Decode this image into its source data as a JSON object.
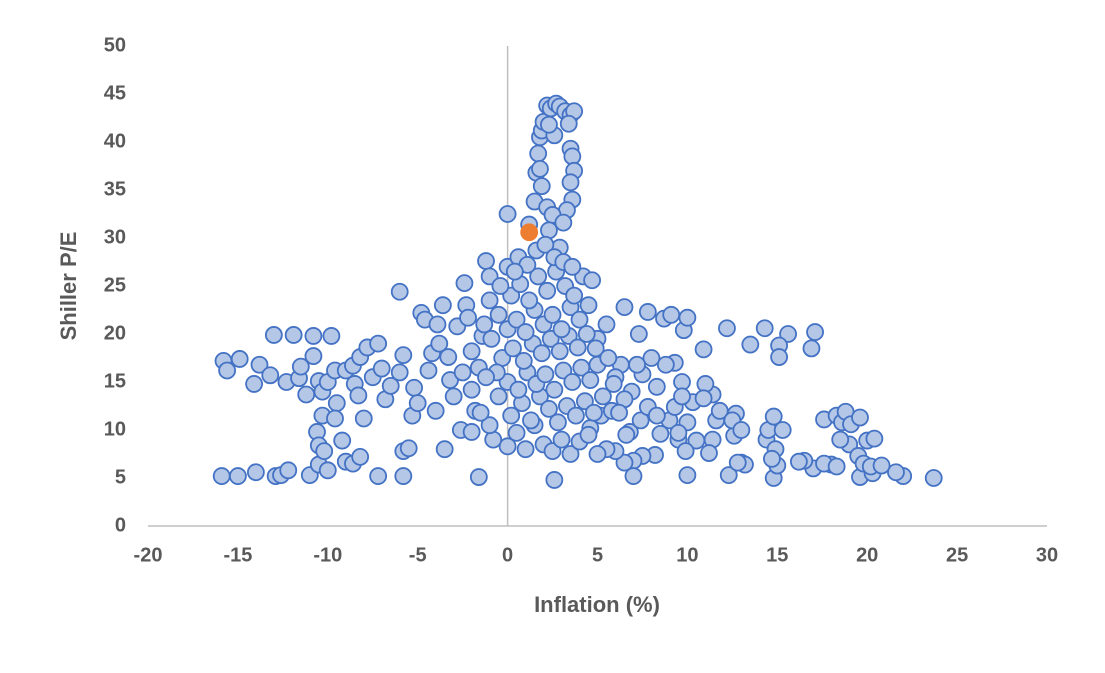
{
  "chart_data": {
    "type": "scatter",
    "x_label": "Inflation (%)",
    "y_label": "Shiller P/E",
    "xlim": [
      -20,
      30
    ],
    "xticks": [
      -20,
      -15,
      -10,
      -5,
      0,
      5,
      10,
      15,
      20,
      25,
      30
    ],
    "ylim": [
      0,
      50
    ],
    "yticks": [
      0,
      5,
      10,
      15,
      20,
      25,
      30,
      35,
      40,
      45,
      50
    ],
    "series": [
      {
        "color": "#b4c7e7",
        "edgecolor": "#4472c4",
        "x": [
          -15.9,
          -15,
          -14,
          -12.9,
          -12.6,
          -12.2,
          -11,
          -10.5,
          -10,
          -9,
          -8.6,
          -8.2,
          -7.2,
          -5.8,
          -1.6,
          2.6,
          10,
          12.3,
          14.8,
          19.6,
          22,
          23.7,
          20.3,
          21.6,
          18,
          17,
          16.5,
          13,
          15,
          -15.8,
          -15.6,
          -14.9,
          -14.1,
          -13.8,
          -13.2,
          -13,
          -12.3,
          -11.9,
          -11.6,
          -11.5,
          -11.2,
          -10.8,
          -10.8,
          -10.5,
          -10.3,
          -10.6,
          -10.5,
          -10.2,
          -10.3,
          -10,
          -9.8,
          -9.6,
          -9.5,
          -9.6,
          -9.2,
          -9,
          -8.6,
          -8.5,
          -8.3,
          -8.2,
          -8,
          -7.8,
          -7.5,
          -7.2,
          -7,
          -6.8,
          -6.5,
          -6,
          -6,
          -5.8,
          -5.8,
          -5.5,
          -5.3,
          -5.2,
          -5,
          -4.8,
          -4.6,
          -4.4,
          -4.2,
          -4,
          -3.9,
          -3.8,
          -3.6,
          -3.5,
          -3.3,
          -3.2,
          -3,
          -2.8,
          -2.6,
          -2.5,
          -2.4,
          -2.3,
          -2.2,
          -2,
          -2,
          -1.8,
          -1.6,
          -1.4,
          -1.2,
          -1,
          -1,
          1.2,
          1.5,
          1.6,
          1.7,
          1.8,
          1.9,
          2,
          2.2,
          2.4,
          2.7,
          2.9,
          3.2,
          3.5,
          3.7,
          3.4,
          3.5,
          3.6,
          3.7,
          3.5,
          3.6,
          3.3,
          2.6,
          2.3,
          1.9,
          1.8,
          2.2,
          2.5,
          0,
          2.3,
          2.9,
          3.1,
          5,
          5.5,
          6.5,
          7.3,
          7.8,
          8.7,
          9.1,
          9.8,
          10,
          10.9,
          12.2,
          13.5,
          14.3,
          15.6,
          15.1,
          15.1,
          16.9,
          17.1,
          14.4,
          14.5,
          14.8,
          15.3,
          14.9,
          14.7,
          17.6,
          18.3,
          18.6,
          18.8,
          19,
          19.1,
          19.6,
          19.5,
          19.8,
          20,
          20.4,
          18.5,
          17.6,
          18.3,
          20.2,
          20.8,
          16.2,
          13.2,
          12.8,
          12.6,
          12.7,
          11.6,
          11.4,
          11,
          10.3,
          9.7,
          9.3,
          8.8,
          8.3,
          8,
          7.5,
          7.2,
          6.9,
          6.5,
          6.3,
          6,
          10.5,
          10,
          9.5,
          9,
          8.5,
          8.2,
          7.5,
          7,
          6.5,
          6,
          6.8,
          7.4,
          7.8,
          8.3,
          9.3,
          9.7,
          10.9,
          11.8,
          12.5,
          13,
          11.4,
          11.2,
          9.9,
          9.5,
          7,
          5.5,
          5,
          5.2,
          4.6,
          0,
          0.5,
          1,
          1.5,
          2,
          2.5,
          3,
          3.5,
          4,
          4.5,
          0.2,
          0.8,
          1.3,
          1.8,
          2.3,
          2.8,
          3.3,
          3.8,
          4.3,
          4.8,
          -0.5,
          0,
          0.6,
          1.1,
          1.6,
          2.1,
          2.6,
          3.1,
          3.6,
          4.1,
          4.6,
          5,
          -0.3,
          0.3,
          0.9,
          1.4,
          1.9,
          2.4,
          2.9,
          3.4,
          3.9,
          4.4,
          4.9,
          0,
          0.5,
          1,
          1.5,
          2,
          2.5,
          3,
          3.5,
          4,
          4.5,
          -0.5,
          0.2,
          0.7,
          1.2,
          1.7,
          2.2,
          2.7,
          3.2,
          3.7,
          4.2,
          4.7,
          0,
          0.6,
          1.1,
          1.6,
          2.1,
          2.6,
          3.1,
          3.6,
          -0.8,
          -1,
          -1.5,
          -2,
          -0.6,
          -1.2,
          -0.9,
          -0.4,
          0.4,
          -1.3,
          5.3,
          5.8,
          5.6,
          5.9,
          6.2,
          6.6
        ],
        "values": [
          5.2,
          5.2,
          5.6,
          5.2,
          5.3,
          5.8,
          5.3,
          6.4,
          5.8,
          6.7,
          6.5,
          7.2,
          5.2,
          5.2,
          5.1,
          4.8,
          5.3,
          5.3,
          5,
          5.1,
          5.2,
          5,
          5.5,
          5.6,
          6.4,
          6,
          6.8,
          6.6,
          6.3,
          17.2,
          16.2,
          17.4,
          14.8,
          16.8,
          15.7,
          19.9,
          15,
          19.9,
          15.4,
          16.6,
          13.7,
          17.7,
          19.8,
          15.1,
          11.5,
          9.8,
          8.4,
          7.8,
          14,
          15,
          19.8,
          16.2,
          12.8,
          11.2,
          8.9,
          16.2,
          16.7,
          14.8,
          13.6,
          17.6,
          11.2,
          18.6,
          15.5,
          19,
          16.4,
          13.2,
          14.6,
          16,
          24.4,
          17.8,
          7.8,
          8.1,
          11.5,
          14.4,
          12.8,
          22.2,
          21.5,
          16.2,
          18,
          12,
          21,
          19,
          23,
          8,
          17.6,
          15.2,
          13.5,
          20.8,
          10,
          16,
          25.3,
          23,
          21.7,
          18.2,
          14.2,
          12,
          16.5,
          19.8,
          27.6,
          23.5,
          26,
          31.4,
          33.8,
          36.8,
          38.8,
          40.5,
          41.2,
          42.1,
          43.8,
          43.5,
          44,
          43.7,
          43.2,
          42.8,
          43.2,
          41.9,
          39.3,
          38.5,
          37,
          35.8,
          34,
          32.9,
          40.7,
          41.8,
          35.4,
          37.2,
          33.2,
          32.4,
          32.5,
          30.8,
          29,
          31.6,
          19.5,
          21,
          22.8,
          20,
          22.3,
          21.6,
          22,
          20.4,
          21.7,
          18.4,
          20.6,
          18.9,
          20.6,
          20,
          18.8,
          17.6,
          18.5,
          20.2,
          9,
          10,
          11.4,
          10,
          8,
          7,
          11.1,
          11.5,
          10.8,
          11.9,
          8.5,
          10.6,
          11.3,
          7.3,
          6.5,
          8.9,
          9.1,
          9,
          6.5,
          6.2,
          6.2,
          6.3,
          6.7,
          6.4,
          6.6,
          9.4,
          11.7,
          11,
          13.7,
          14.8,
          12.9,
          15,
          17,
          16.8,
          14.5,
          17.5,
          15.8,
          16.8,
          14,
          13.2,
          16.8,
          15.5,
          8.9,
          10.8,
          9,
          11,
          9.6,
          7.4,
          7.3,
          6.8,
          6.6,
          7.8,
          9.8,
          11,
          12.4,
          11.5,
          12.4,
          13.5,
          13.3,
          12,
          11,
          10,
          9,
          7.6,
          7.8,
          9.7,
          5.2,
          8,
          7.5,
          11.5,
          10.2,
          8.3,
          9.7,
          8,
          10.5,
          8.5,
          7.8,
          9,
          7.5,
          8.8,
          9.5,
          11.5,
          12.8,
          11,
          13.5,
          12.2,
          10.8,
          12.5,
          11.5,
          13,
          11.8,
          13.5,
          15,
          14.2,
          16,
          14.8,
          15.8,
          14.2,
          16.2,
          15,
          16.5,
          15.2,
          16.8,
          17.5,
          18.5,
          17.2,
          19,
          18,
          19.5,
          18.2,
          19.8,
          18.6,
          20,
          18.5,
          20.5,
          21.5,
          20.2,
          22.5,
          21,
          22,
          20.5,
          22.8,
          21.5,
          23,
          22,
          24,
          25.2,
          23.5,
          26,
          24.5,
          26.5,
          25,
          24,
          26,
          25.6,
          27,
          28,
          27.2,
          28.7,
          29.3,
          28,
          27.5,
          27,
          9,
          10.5,
          11.8,
          9.8,
          16,
          15.5,
          19.5,
          25,
          26.5,
          21,
          13.5,
          12,
          17.5,
          14.8,
          11.8,
          9.5
        ]
      },
      {
        "color": "#ed7d31",
        "edgecolor": "#ed7d31",
        "x": [
          1.2
        ],
        "values": [
          30.6
        ]
      }
    ]
  }
}
